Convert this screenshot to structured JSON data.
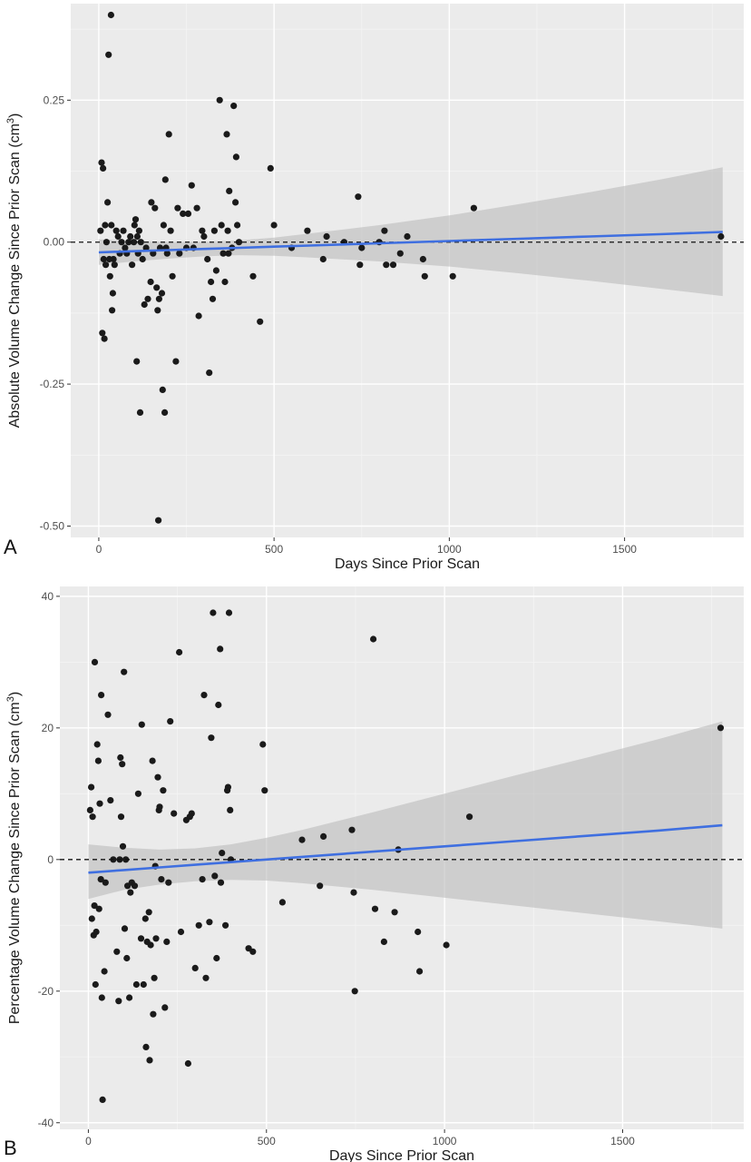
{
  "chart_data": [
    {
      "type": "scatter",
      "panel_label": "A",
      "title": "",
      "xlabel": "Days Since Prior Scan",
      "ylabel": "Absolute Volume Change Since Prior Scan (cm",
      "ylabel_sup": "3",
      "ylabel_close": ")",
      "xlim": [
        -80,
        1840
      ],
      "ylim": [
        -0.52,
        0.42
      ],
      "xticks": [
        0,
        500,
        1000,
        1500
      ],
      "xtick_labels": [
        "0",
        "500",
        "1000",
        "1500"
      ],
      "yticks": [
        -0.5,
        -0.25,
        0.0,
        0.25
      ],
      "ytick_labels": [
        "-0.50",
        "-0.25",
        "0.00",
        "0.25"
      ],
      "grid": true,
      "reference_line": 0,
      "fit": {
        "x": [
          0,
          100,
          200,
          300,
          400,
          500,
          600,
          800,
          1000,
          1200,
          1400,
          1600,
          1780
        ],
        "y": [
          -0.018,
          -0.016,
          -0.014,
          -0.012,
          -0.01,
          -0.008,
          -0.006,
          -0.002,
          0.002,
          0.006,
          0.01,
          0.014,
          0.018
        ],
        "lower": [
          -0.04,
          -0.034,
          -0.029,
          -0.025,
          -0.023,
          -0.024,
          -0.027,
          -0.034,
          -0.043,
          -0.055,
          -0.068,
          -0.082,
          -0.095
        ],
        "upper": [
          0.005,
          0.002,
          0.001,
          0.001,
          0.003,
          0.008,
          0.015,
          0.03,
          0.047,
          0.067,
          0.088,
          0.11,
          0.132
        ]
      },
      "points": [
        [
          5,
          0.02
        ],
        [
          8,
          0.14
        ],
        [
          10,
          -0.16
        ],
        [
          12,
          0.13
        ],
        [
          14,
          -0.03
        ],
        [
          16,
          -0.17
        ],
        [
          18,
          0.03
        ],
        [
          20,
          -0.04
        ],
        [
          22,
          0.0
        ],
        [
          25,
          0.07
        ],
        [
          28,
          0.33
        ],
        [
          30,
          -0.03
        ],
        [
          32,
          -0.06
        ],
        [
          35,
          0.4
        ],
        [
          36,
          0.03
        ],
        [
          38,
          -0.12
        ],
        [
          40,
          -0.09
        ],
        [
          42,
          -0.03
        ],
        [
          45,
          -0.04
        ],
        [
          50,
          0.02
        ],
        [
          55,
          0.01
        ],
        [
          60,
          -0.02
        ],
        [
          65,
          0.0
        ],
        [
          70,
          0.02
        ],
        [
          75,
          -0.01
        ],
        [
          80,
          -0.02
        ],
        [
          85,
          0.0
        ],
        [
          90,
          0.01
        ],
        [
          95,
          -0.04
        ],
        [
          100,
          0.0
        ],
        [
          102,
          0.03
        ],
        [
          105,
          0.04
        ],
        [
          108,
          -0.21
        ],
        [
          110,
          0.01
        ],
        [
          112,
          -0.02
        ],
        [
          115,
          0.02
        ],
        [
          118,
          -0.3
        ],
        [
          120,
          0.0
        ],
        [
          125,
          -0.03
        ],
        [
          130,
          -0.11
        ],
        [
          135,
          -0.01
        ],
        [
          140,
          -0.1
        ],
        [
          148,
          -0.07
        ],
        [
          150,
          0.07
        ],
        [
          155,
          -0.02
        ],
        [
          160,
          0.06
        ],
        [
          165,
          -0.08
        ],
        [
          168,
          -0.12
        ],
        [
          170,
          -0.49
        ],
        [
          172,
          -0.1
        ],
        [
          175,
          -0.01
        ],
        [
          180,
          -0.09
        ],
        [
          182,
          -0.26
        ],
        [
          185,
          0.03
        ],
        [
          188,
          -0.3
        ],
        [
          190,
          0.11
        ],
        [
          192,
          -0.01
        ],
        [
          195,
          -0.02
        ],
        [
          200,
          0.19
        ],
        [
          205,
          0.02
        ],
        [
          210,
          -0.06
        ],
        [
          220,
          -0.21
        ],
        [
          225,
          0.06
        ],
        [
          230,
          -0.02
        ],
        [
          240,
          0.05
        ],
        [
          250,
          -0.01
        ],
        [
          255,
          0.05
        ],
        [
          265,
          0.1
        ],
        [
          270,
          -0.01
        ],
        [
          280,
          0.06
        ],
        [
          285,
          -0.13
        ],
        [
          295,
          0.02
        ],
        [
          300,
          0.01
        ],
        [
          310,
          -0.03
        ],
        [
          315,
          -0.23
        ],
        [
          320,
          -0.07
        ],
        [
          325,
          -0.1
        ],
        [
          330,
          0.02
        ],
        [
          335,
          -0.05
        ],
        [
          345,
          0.25
        ],
        [
          350,
          0.03
        ],
        [
          355,
          -0.02
        ],
        [
          360,
          -0.07
        ],
        [
          365,
          0.19
        ],
        [
          368,
          0.02
        ],
        [
          370,
          -0.02
        ],
        [
          372,
          0.09
        ],
        [
          380,
          -0.01
        ],
        [
          385,
          0.24
        ],
        [
          390,
          0.07
        ],
        [
          392,
          0.15
        ],
        [
          395,
          0.03
        ],
        [
          400,
          0.0
        ],
        [
          440,
          -0.06
        ],
        [
          460,
          -0.14
        ],
        [
          490,
          0.13
        ],
        [
          500,
          0.03
        ],
        [
          550,
          -0.01
        ],
        [
          595,
          0.02
        ],
        [
          640,
          -0.03
        ],
        [
          650,
          0.01
        ],
        [
          700,
          0.0
        ],
        [
          740,
          0.08
        ],
        [
          745,
          -0.04
        ],
        [
          750,
          -0.01
        ],
        [
          800,
          0.0
        ],
        [
          815,
          0.02
        ],
        [
          820,
          -0.04
        ],
        [
          840,
          -0.04
        ],
        [
          860,
          -0.02
        ],
        [
          880,
          0.01
        ],
        [
          925,
          -0.03
        ],
        [
          930,
          -0.06
        ],
        [
          1010,
          -0.06
        ],
        [
          1070,
          0.06
        ],
        [
          1775,
          0.01
        ]
      ]
    },
    {
      "type": "scatter",
      "panel_label": "B",
      "title": "",
      "xlabel": "Days Since Prior Scan",
      "ylabel": "Percentage Volume Change Since Prior Scan (cm",
      "ylabel_sup": "3",
      "ylabel_close": ")",
      "xlim": [
        -80,
        1840
      ],
      "ylim": [
        -41,
        41.5
      ],
      "xticks": [
        0,
        500,
        1000,
        1500
      ],
      "xtick_labels": [
        "0",
        "500",
        "1000",
        "1500"
      ],
      "yticks": [
        -40,
        -20,
        0,
        20,
        40
      ],
      "ytick_labels": [
        "-40",
        "-20",
        "0",
        "20",
        "40"
      ],
      "grid": true,
      "reference_line": 0,
      "fit": {
        "x": [
          0,
          100,
          200,
          300,
          400,
          500,
          600,
          800,
          1000,
          1200,
          1400,
          1600,
          1780
        ],
        "y": [
          -2.0,
          -1.6,
          -1.2,
          -0.8,
          -0.4,
          0.0,
          0.4,
          1.2,
          2.0,
          2.8,
          3.6,
          4.4,
          5.2
        ],
        "lower": [
          -6.0,
          -4.6,
          -3.8,
          -3.3,
          -3.1,
          -3.2,
          -3.6,
          -4.6,
          -5.8,
          -7.0,
          -8.2,
          -9.4,
          -10.5
        ],
        "upper": [
          2.3,
          1.8,
          1.5,
          1.7,
          2.3,
          3.3,
          4.5,
          7.2,
          10.0,
          12.8,
          15.5,
          18.3,
          21.0
        ]
      },
      "points": [
        [
          5,
          7.5
        ],
        [
          8,
          11.0
        ],
        [
          10,
          -9.0
        ],
        [
          12,
          6.5
        ],
        [
          15,
          -11.5
        ],
        [
          17,
          -7.0
        ],
        [
          18,
          30.0
        ],
        [
          20,
          -19.0
        ],
        [
          22,
          -11.0
        ],
        [
          25,
          17.5
        ],
        [
          28,
          15.0
        ],
        [
          30,
          -7.5
        ],
        [
          32,
          8.5
        ],
        [
          35,
          -3.0
        ],
        [
          36,
          25.0
        ],
        [
          38,
          -21.0
        ],
        [
          40,
          -36.5
        ],
        [
          45,
          -17.0
        ],
        [
          48,
          -3.5
        ],
        [
          55,
          22.0
        ],
        [
          62,
          9.0
        ],
        [
          70,
          0.0
        ],
        [
          80,
          -14.0
        ],
        [
          85,
          -21.5
        ],
        [
          88,
          0.0
        ],
        [
          90,
          15.5
        ],
        [
          92,
          6.5
        ],
        [
          95,
          14.5
        ],
        [
          97,
          2.0
        ],
        [
          100,
          28.5
        ],
        [
          102,
          -10.5
        ],
        [
          105,
          0.0
        ],
        [
          108,
          -15.0
        ],
        [
          110,
          -4.0
        ],
        [
          115,
          -21.0
        ],
        [
          118,
          -5.0
        ],
        [
          122,
          -3.5
        ],
        [
          130,
          -4.0
        ],
        [
          135,
          -19.0
        ],
        [
          140,
          10.0
        ],
        [
          148,
          -12.0
        ],
        [
          150,
          20.5
        ],
        [
          155,
          -19.0
        ],
        [
          160,
          -9.0
        ],
        [
          162,
          -28.5
        ],
        [
          165,
          -12.5
        ],
        [
          170,
          -8.0
        ],
        [
          172,
          -30.5
        ],
        [
          175,
          -13.0
        ],
        [
          180,
          15.0
        ],
        [
          182,
          -23.5
        ],
        [
          185,
          -18.0
        ],
        [
          188,
          -1.0
        ],
        [
          190,
          -12.0
        ],
        [
          195,
          12.5
        ],
        [
          198,
          7.5
        ],
        [
          200,
          8.0
        ],
        [
          205,
          -3.0
        ],
        [
          210,
          10.5
        ],
        [
          215,
          -22.5
        ],
        [
          220,
          -12.5
        ],
        [
          225,
          -3.5
        ],
        [
          230,
          21.0
        ],
        [
          240,
          7.0
        ],
        [
          255,
          31.5
        ],
        [
          260,
          -11.0
        ],
        [
          275,
          6.0
        ],
        [
          280,
          -31.0
        ],
        [
          285,
          6.5
        ],
        [
          290,
          7.0
        ],
        [
          300,
          -16.5
        ],
        [
          310,
          -10.0
        ],
        [
          320,
          -3.0
        ],
        [
          325,
          25.0
        ],
        [
          330,
          -18.0
        ],
        [
          340,
          -9.5
        ],
        [
          345,
          18.5
        ],
        [
          350,
          37.5
        ],
        [
          355,
          -2.5
        ],
        [
          360,
          -15.0
        ],
        [
          365,
          23.5
        ],
        [
          370,
          32.0
        ],
        [
          372,
          -3.5
        ],
        [
          375,
          1.0
        ],
        [
          385,
          -10.0
        ],
        [
          390,
          10.5
        ],
        [
          392,
          11.0
        ],
        [
          395,
          37.5
        ],
        [
          398,
          7.5
        ],
        [
          400,
          0.0
        ],
        [
          450,
          -13.5
        ],
        [
          462,
          -14.0
        ],
        [
          490,
          17.5
        ],
        [
          495,
          10.5
        ],
        [
          545,
          -6.5
        ],
        [
          600,
          3.0
        ],
        [
          650,
          -4.0
        ],
        [
          660,
          3.5
        ],
        [
          740,
          4.5
        ],
        [
          745,
          -5.0
        ],
        [
          748,
          -20.0
        ],
        [
          800,
          33.5
        ],
        [
          805,
          -7.5
        ],
        [
          830,
          -12.5
        ],
        [
          860,
          -8.0
        ],
        [
          870,
          1.5
        ],
        [
          925,
          -11.0
        ],
        [
          930,
          -17.0
        ],
        [
          1005,
          -13.0
        ],
        [
          1070,
          6.5
        ],
        [
          1775,
          20.0
        ]
      ]
    }
  ]
}
